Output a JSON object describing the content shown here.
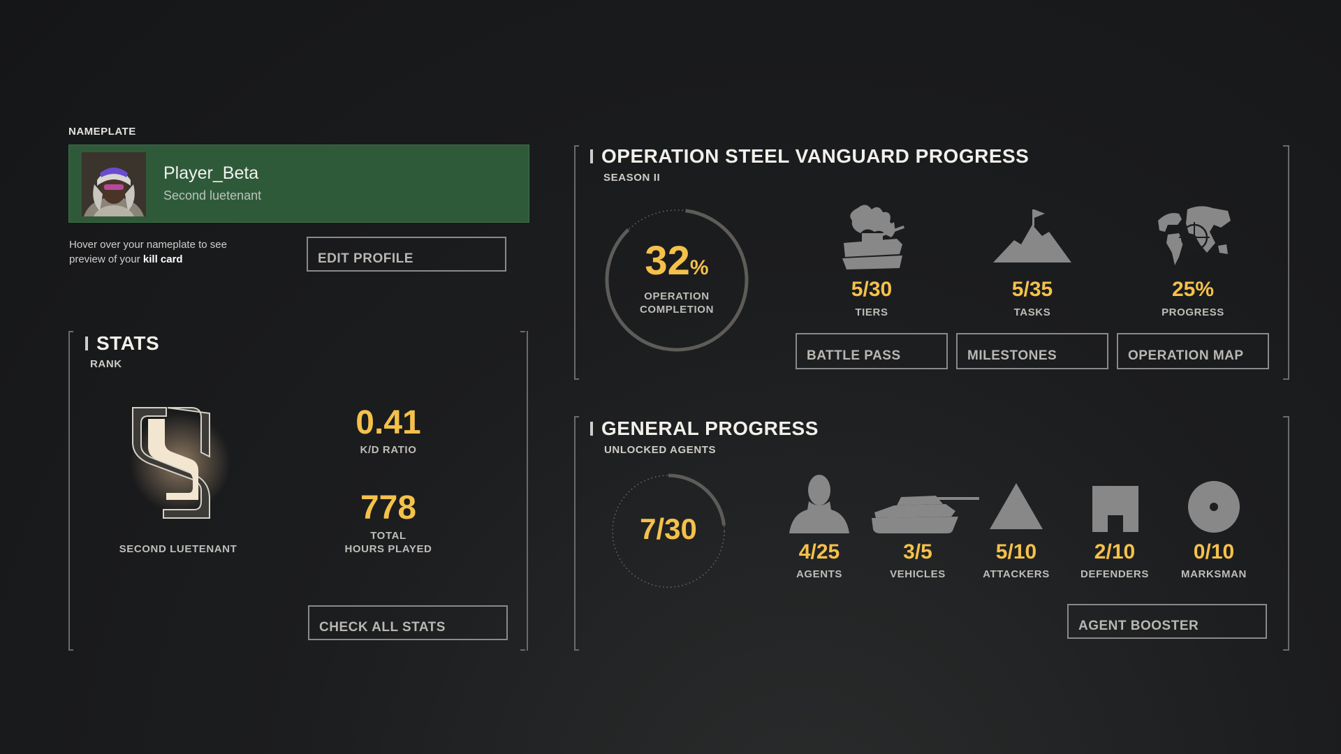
{
  "nameplate": {
    "section_label": "NAMEPLATE",
    "player_name": "Player_Beta",
    "player_rank": "Second luetenant",
    "hint_text": "Hover over your nameplate to see preview of your ",
    "hint_bold": "kill card",
    "edit_profile_label": "EDIT PROFILE",
    "accent_color": "#2f5a3a"
  },
  "stats": {
    "title": "STATS",
    "subtitle": "RANK",
    "rank_name": "SECOND LUETENANT",
    "kd_value": "0.41",
    "kd_label": "K/D RATIO",
    "hours_value": "778",
    "hours_label_1": "TOTAL",
    "hours_label_2": "HOURS PLAYED",
    "check_all_label": "CHECK ALL STATS"
  },
  "operation": {
    "title": "OPERATION STEEL VANGUARD PROGRESS",
    "subtitle": "SEASON II",
    "completion_value": "32",
    "completion_unit": "%",
    "completion_label_1": "OPERATION",
    "completion_label_2": "COMPLETION",
    "completion_fraction": 0.32,
    "items": [
      {
        "value": "5/30",
        "label": "TIERS",
        "icon": "tank-battle-icon"
      },
      {
        "value": "5/35",
        "label": "TASKS",
        "icon": "mountain-flag-icon"
      },
      {
        "value": "25%",
        "label": "PROGRESS",
        "icon": "world-map-target-icon"
      }
    ],
    "buttons": [
      "BATTLE PASS",
      "MILESTONES",
      "OPERATION MAP"
    ]
  },
  "general": {
    "title": "GENERAL PROGRESS",
    "subtitle": "UNLOCKED AGENTS",
    "agents_value": "7/30",
    "agents_fraction": 0.2333,
    "items": [
      {
        "value": "4/25",
        "label": "AGENTS",
        "icon": "agent-silhouette-icon"
      },
      {
        "value": "3/5",
        "label": "VEHICLES",
        "icon": "tank-icon"
      },
      {
        "value": "5/10",
        "label": "ATTACKERS",
        "icon": "triangle-icon"
      },
      {
        "value": "2/10",
        "label": "DEFENDERS",
        "icon": "fort-icon"
      },
      {
        "value": "0/10",
        "label": "MARKSMAN",
        "icon": "target-circle-icon"
      }
    ],
    "booster_label": "AGENT BOOSTER"
  },
  "colors": {
    "highlight": "#f4c14a",
    "icon_gray": "#888888",
    "frame_gray": "#6b6b6b"
  }
}
